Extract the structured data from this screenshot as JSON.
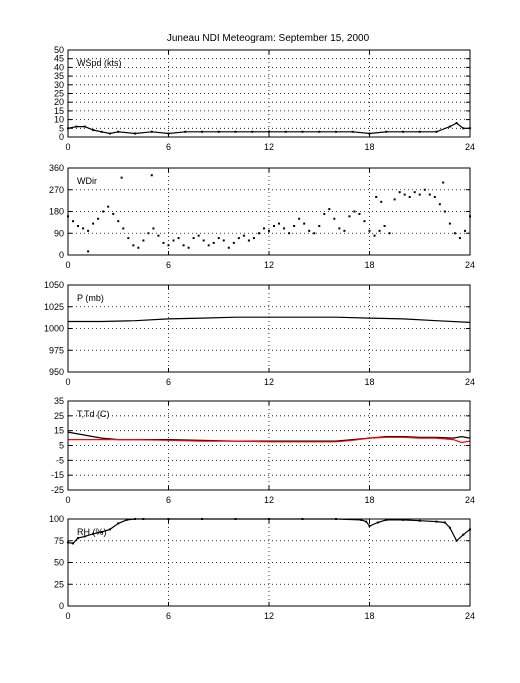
{
  "title": "Juneau NDI Meteogram: September 15, 2000",
  "chart_data": [
    {
      "type": "scatter",
      "label": "WSpd (kts)",
      "x_ticks": [
        0,
        6,
        12,
        18,
        24
      ],
      "y_ticks": [
        0,
        5,
        10,
        15,
        20,
        25,
        30,
        35,
        40,
        45,
        50
      ],
      "ylim": [
        0,
        50
      ],
      "xlim": [
        0,
        24
      ],
      "grid": true,
      "series": [
        {
          "color": "#000000",
          "style": "line+points",
          "x": [
            0,
            0.5,
            1,
            1.5,
            2,
            2.5,
            3,
            4,
            5,
            6,
            7,
            8,
            9,
            10,
            11,
            12,
            13,
            14,
            15,
            16,
            17,
            18,
            19,
            20,
            21,
            22,
            22.8,
            23.2,
            23.6,
            24
          ],
          "y": [
            5,
            6,
            6,
            4,
            3,
            2,
            3,
            2,
            3,
            2,
            3,
            3,
            3,
            3,
            3,
            3,
            3,
            3,
            3,
            3,
            3,
            2,
            3,
            3,
            3,
            3,
            6,
            8,
            5,
            5
          ]
        }
      ]
    },
    {
      "type": "scatter",
      "label": "WDir",
      "x_ticks": [
        0,
        6,
        12,
        18,
        24
      ],
      "y_ticks": [
        0,
        90,
        180,
        270,
        360
      ],
      "ylim": [
        0,
        360
      ],
      "xlim": [
        0,
        24
      ],
      "grid": true,
      "series": [
        {
          "color": "#000000",
          "style": "points",
          "x": [
            0,
            0.3,
            0.6,
            0.9,
            1.2,
            1.5,
            1.8,
            2.1,
            2.4,
            2.7,
            3.0,
            3.3,
            3.6,
            3.9,
            4.2,
            4.5,
            4.8,
            5.1,
            5.4,
            5.7,
            6.0,
            6.3,
            6.6,
            6.9,
            7.2,
            7.5,
            7.8,
            8.1,
            8.4,
            8.7,
            9.0,
            9.3,
            9.6,
            9.9,
            10.2,
            10.5,
            10.8,
            11.1,
            11.4,
            11.7,
            12.0,
            12.3,
            12.6,
            12.9,
            13.2,
            13.5,
            13.8,
            14.1,
            14.4,
            14.7,
            15.0,
            15.3,
            15.6,
            15.9,
            16.2,
            16.5,
            16.8,
            17.1,
            17.4,
            17.7,
            18.0,
            18.3,
            18.6,
            18.9,
            19.2,
            19.5,
            19.8,
            20.1,
            20.4,
            20.7,
            21.0,
            21.3,
            21.6,
            21.9,
            22.2,
            22.5,
            22.8,
            23.1,
            23.4,
            23.7,
            24.0,
            3.2,
            5.0,
            1.2,
            18.4,
            18.7,
            22.4
          ],
          "y": [
            160,
            140,
            120,
            110,
            100,
            130,
            150,
            180,
            200,
            170,
            140,
            110,
            70,
            40,
            30,
            60,
            90,
            110,
            80,
            50,
            40,
            60,
            70,
            40,
            30,
            70,
            80,
            60,
            40,
            50,
            70,
            60,
            30,
            50,
            70,
            80,
            60,
            70,
            90,
            110,
            100,
            120,
            130,
            110,
            90,
            120,
            150,
            130,
            100,
            90,
            120,
            170,
            190,
            150,
            110,
            100,
            160,
            180,
            170,
            140,
            100,
            80,
            100,
            120,
            90,
            230,
            260,
            250,
            240,
            260,
            250,
            270,
            250,
            240,
            210,
            180,
            130,
            90,
            70,
            100,
            160,
            320,
            330,
            15,
            240,
            220,
            300
          ]
        }
      ]
    },
    {
      "type": "line",
      "label": "P (mb)",
      "x_ticks": [
        0,
        6,
        12,
        18,
        24
      ],
      "y_ticks": [
        950,
        975,
        1000,
        1025,
        1050
      ],
      "ylim": [
        950,
        1050
      ],
      "xlim": [
        0,
        24
      ],
      "grid": true,
      "series": [
        {
          "color": "#000000",
          "style": "line",
          "x": [
            0,
            2,
            4,
            6,
            8,
            10,
            12,
            14,
            16,
            18,
            20,
            22,
            24
          ],
          "y": [
            1008,
            1008,
            1009,
            1011,
            1012,
            1013,
            1013,
            1013,
            1013,
            1012,
            1011,
            1009,
            1007
          ]
        }
      ]
    },
    {
      "type": "line",
      "label": "T,Td (C)",
      "x_ticks": [
        0,
        6,
        12,
        18,
        24
      ],
      "y_ticks": [
        -25,
        -15,
        -5,
        5,
        15,
        25,
        35
      ],
      "ylim": [
        -25,
        35
      ],
      "xlim": [
        0,
        24
      ],
      "grid": true,
      "series": [
        {
          "color": "#000000",
          "style": "line",
          "x": [
            0,
            0.5,
            1,
            1.5,
            2,
            3,
            4,
            6,
            8,
            10,
            12,
            14,
            16,
            17,
            18,
            19,
            20,
            21,
            22,
            23,
            23.5,
            24
          ],
          "y": [
            14,
            13,
            12,
            11,
            10,
            9,
            9,
            9,
            8.5,
            8,
            8,
            8,
            8,
            9,
            10,
            11,
            11,
            10.5,
            10.5,
            10,
            11,
            10
          ]
        },
        {
          "color": "#ff0000",
          "style": "line",
          "x": [
            0,
            1,
            2,
            4,
            6,
            8,
            10,
            12,
            14,
            16,
            17,
            18,
            19,
            20,
            21,
            22,
            23,
            23.5,
            24
          ],
          "y": [
            9,
            9,
            9,
            9,
            8.5,
            8,
            8,
            7.5,
            7.5,
            7.5,
            8.5,
            10,
            10.5,
            10.5,
            10,
            10,
            9,
            7,
            8
          ]
        }
      ]
    },
    {
      "type": "line",
      "label": "RH (%)",
      "x_ticks": [
        0,
        6,
        12,
        18,
        24
      ],
      "y_ticks": [
        0,
        25,
        50,
        75,
        100
      ],
      "ylim": [
        0,
        100
      ],
      "xlim": [
        0,
        24
      ],
      "grid": true,
      "series": [
        {
          "color": "#000000",
          "style": "line+points",
          "x": [
            0,
            0.3,
            0.6,
            1,
            1.5,
            2,
            2.5,
            3,
            3.5,
            4,
            4.5,
            6,
            8,
            10,
            12,
            14,
            16,
            17.5,
            17.8,
            18,
            18.5,
            19,
            20,
            21,
            22,
            22.5,
            22.8,
            23.2,
            23.6,
            24
          ],
          "y": [
            73,
            72,
            78,
            80,
            83,
            85,
            88,
            95,
            99,
            100,
            100,
            100,
            100,
            100,
            100,
            100,
            100,
            99,
            97,
            92,
            96,
            99,
            99,
            98,
            97,
            96,
            90,
            75,
            82,
            88
          ]
        }
      ]
    }
  ]
}
